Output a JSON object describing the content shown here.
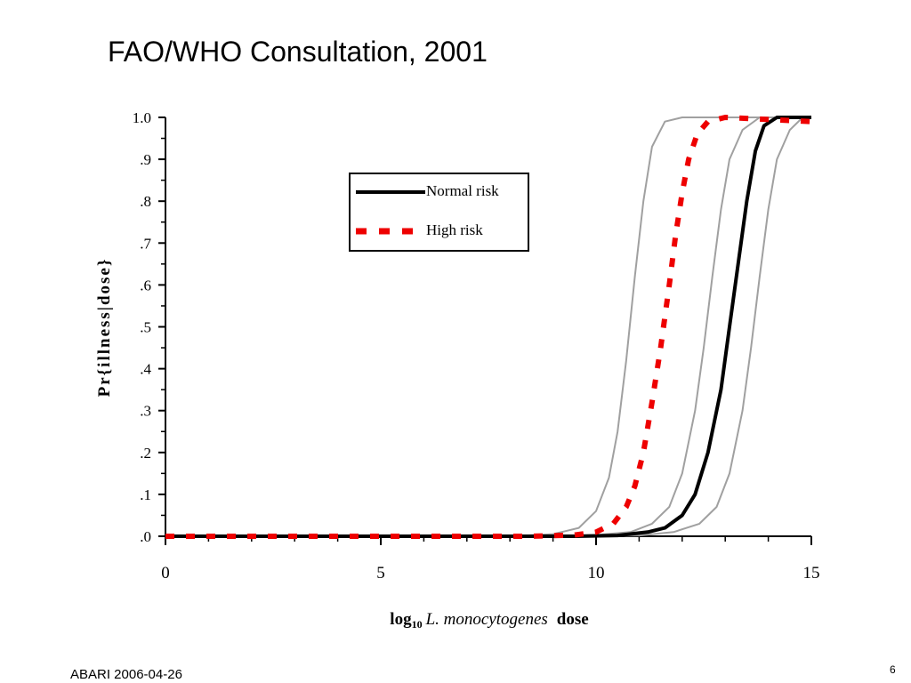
{
  "slide": {
    "title": "FAO/WHO Consultation, 2001",
    "footer_left": "ABARI 2006-04-26",
    "page_number": "6"
  },
  "chart_data": {
    "type": "line",
    "xlabel_prefix": "log",
    "xlabel_subscript": "10",
    "xlabel_italic": "L. monocytogenes",
    "xlabel_suffix": "dose",
    "ylabel": "Pr{illness|dose}",
    "xlim": [
      0,
      15
    ],
    "ylim": [
      0,
      1.0
    ],
    "x_ticks": [
      0,
      5,
      10,
      15
    ],
    "x_tick_labels": [
      "0",
      "5",
      "10",
      "15"
    ],
    "y_ticks": [
      0,
      0.1,
      0.2,
      0.3,
      0.4,
      0.5,
      0.6,
      0.7,
      0.8,
      0.9,
      1.0
    ],
    "y_tick_labels": [
      ".0",
      ".1",
      ".2",
      ".3",
      ".4",
      ".5",
      ".6",
      ".7",
      ".8",
      ".9",
      "1.0"
    ],
    "legend_position": "top-center",
    "series": [
      {
        "name": "Normal risk",
        "color": "#000000",
        "style": "solid",
        "points": [
          [
            0,
            0
          ],
          [
            9.5,
            0
          ],
          [
            10.5,
            0.002
          ],
          [
            11.2,
            0.01
          ],
          [
            11.6,
            0.02
          ],
          [
            12.0,
            0.05
          ],
          [
            12.3,
            0.1
          ],
          [
            12.6,
            0.2
          ],
          [
            12.9,
            0.35
          ],
          [
            13.1,
            0.5
          ],
          [
            13.3,
            0.65
          ],
          [
            13.5,
            0.8
          ],
          [
            13.7,
            0.92
          ],
          [
            13.9,
            0.98
          ],
          [
            14.2,
            1.0
          ],
          [
            15,
            1.0
          ]
        ]
      },
      {
        "name": "High risk",
        "color": "#ee0000",
        "style": "dashed",
        "points": [
          [
            0,
            0
          ],
          [
            8.5,
            0
          ],
          [
            9.5,
            0.003
          ],
          [
            10.0,
            0.01
          ],
          [
            10.4,
            0.03
          ],
          [
            10.7,
            0.07
          ],
          [
            10.9,
            0.12
          ],
          [
            11.1,
            0.2
          ],
          [
            11.3,
            0.32
          ],
          [
            11.5,
            0.45
          ],
          [
            11.7,
            0.6
          ],
          [
            11.85,
            0.72
          ],
          [
            12.0,
            0.82
          ],
          [
            12.15,
            0.9
          ],
          [
            12.35,
            0.96
          ],
          [
            12.6,
            0.99
          ],
          [
            13.0,
            1.0
          ],
          [
            15,
            0.99
          ]
        ]
      },
      {
        "name": "",
        "color": "#a0a0a0",
        "style": "thin",
        "points": [
          [
            0,
            0
          ],
          [
            8.0,
            0
          ],
          [
            9.0,
            0.005
          ],
          [
            9.6,
            0.02
          ],
          [
            10.0,
            0.06
          ],
          [
            10.3,
            0.14
          ],
          [
            10.5,
            0.25
          ],
          [
            10.7,
            0.42
          ],
          [
            10.9,
            0.62
          ],
          [
            11.1,
            0.8
          ],
          [
            11.3,
            0.93
          ],
          [
            11.6,
            0.99
          ],
          [
            12.0,
            1.0
          ],
          [
            15,
            1.0
          ]
        ]
      },
      {
        "name": "",
        "color": "#a0a0a0",
        "style": "thin",
        "points": [
          [
            0,
            0
          ],
          [
            9.0,
            0
          ],
          [
            10.0,
            0.003
          ],
          [
            10.8,
            0.01
          ],
          [
            11.3,
            0.03
          ],
          [
            11.7,
            0.07
          ],
          [
            12.0,
            0.15
          ],
          [
            12.3,
            0.3
          ],
          [
            12.5,
            0.45
          ],
          [
            12.7,
            0.62
          ],
          [
            12.9,
            0.78
          ],
          [
            13.1,
            0.9
          ],
          [
            13.4,
            0.97
          ],
          [
            13.8,
            1.0
          ],
          [
            15,
            1.0
          ]
        ]
      },
      {
        "name": "",
        "color": "#a0a0a0",
        "style": "thin",
        "points": [
          [
            0,
            0
          ],
          [
            10.0,
            0
          ],
          [
            11.0,
            0.002
          ],
          [
            11.8,
            0.01
          ],
          [
            12.4,
            0.03
          ],
          [
            12.8,
            0.07
          ],
          [
            13.1,
            0.15
          ],
          [
            13.4,
            0.3
          ],
          [
            13.6,
            0.45
          ],
          [
            13.8,
            0.62
          ],
          [
            14.0,
            0.78
          ],
          [
            14.2,
            0.9
          ],
          [
            14.5,
            0.97
          ],
          [
            14.8,
            1.0
          ],
          [
            15,
            1.0
          ]
        ]
      }
    ]
  }
}
